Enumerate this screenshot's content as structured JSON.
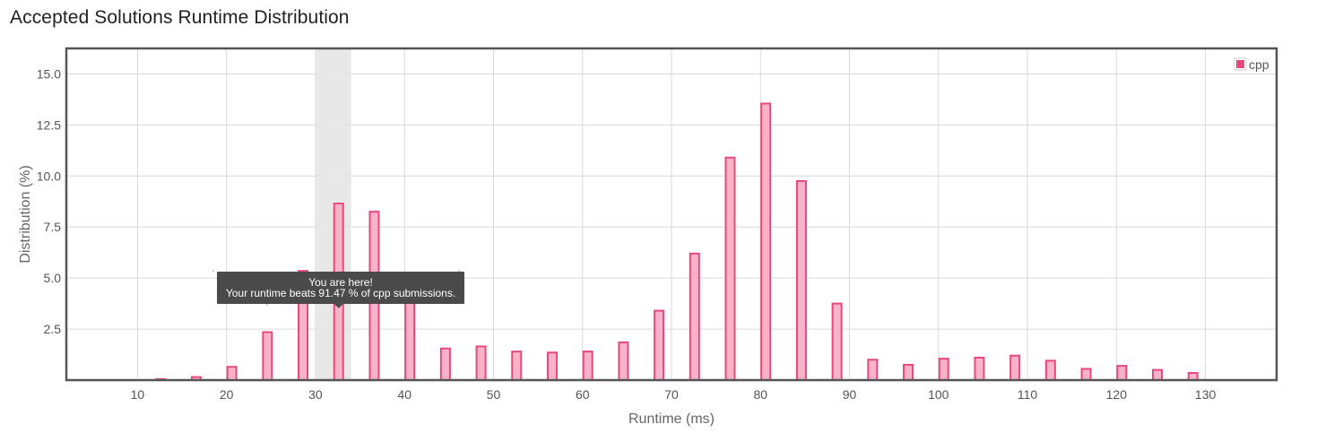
{
  "page": {
    "title": "Accepted Solutions Runtime Distribution"
  },
  "colors": {
    "bar_fill": "#f9b3c9",
    "bar_stroke": "#e8497a",
    "highlight_band": "#e6e6e6",
    "grid": "#d9d9d9",
    "frame": "#555555",
    "tooltip_bg": "#4a4a4a"
  },
  "chart_data": {
    "type": "bar",
    "xlabel": "Runtime (ms)",
    "ylabel": "Distribution (%)",
    "xlim": [
      2,
      138
    ],
    "ylim": [
      0,
      16.25
    ],
    "xticks": [
      10,
      20,
      30,
      40,
      50,
      60,
      70,
      80,
      90,
      100,
      110,
      120,
      130
    ],
    "xtick_labels": [
      "10",
      "20",
      "30",
      "40",
      "50",
      "60",
      "70",
      "80",
      "90",
      "100",
      "110",
      "120",
      "130"
    ],
    "yticks": [
      2.5,
      5.0,
      7.5,
      10.0,
      12.5,
      15.0
    ],
    "ytick_labels": [
      "2.5",
      "5.0",
      "7.5",
      "10.0",
      "12.5",
      "15.0"
    ],
    "grid": true,
    "legend_position": "top-right",
    "series": [
      {
        "name": "cpp",
        "x": [
          12.6,
          16.6,
          20.6,
          24.6,
          28.6,
          32.6,
          36.6,
          40.6,
          44.6,
          48.6,
          52.6,
          56.6,
          60.6,
          64.6,
          68.6,
          72.6,
          76.6,
          80.6,
          84.6,
          88.6,
          92.6,
          96.6,
          100.6,
          104.6,
          108.6,
          112.6,
          116.6,
          120.6,
          124.6,
          128.6
        ],
        "values": [
          0.05,
          0.15,
          0.65,
          2.35,
          5.35,
          8.65,
          8.25,
          4.6,
          1.55,
          1.65,
          1.4,
          1.35,
          1.4,
          1.85,
          3.4,
          6.2,
          10.9,
          13.55,
          9.75,
          3.75,
          1.0,
          0.75,
          1.05,
          1.1,
          1.2,
          0.95,
          0.55,
          0.7,
          0.5,
          0.35
        ]
      }
    ],
    "highlight": {
      "x_range": [
        30,
        34
      ],
      "tooltip_title": "You are here!",
      "tooltip_text": "Your runtime beats 91.47 % of cpp submissions."
    }
  }
}
